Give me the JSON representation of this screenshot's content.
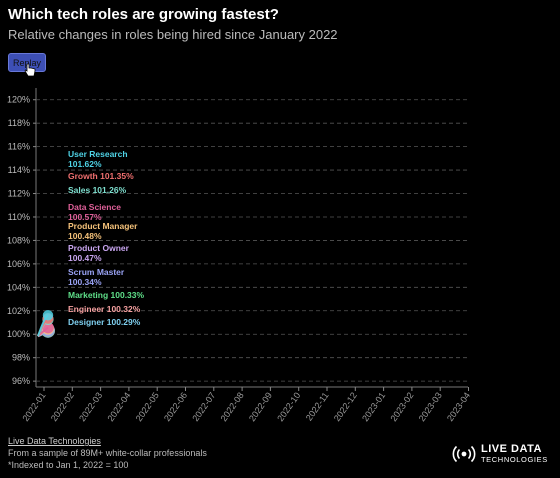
{
  "header": {
    "title": "Which tech roles are growing fastest?",
    "subtitle": "Relative changes in roles being hired since January 2022"
  },
  "controls": {
    "replay_label": "Replay"
  },
  "footer": {
    "source_link": "Live Data Technologies",
    "note1": "From a sample of 89M+ white-collar professionals",
    "note2": "*Indexed to Jan 1, 2022 = 100"
  },
  "logo": {
    "line1": "LIVE DATA",
    "line2": "TECHNOLOGIES"
  },
  "colors": {
    "background": "#000000",
    "grid": "#555555",
    "button": "#3d4fb5"
  },
  "chart_data": {
    "type": "line",
    "title": "Which tech roles are growing fastest?",
    "subtitle": "Relative changes in roles being hired since January 2022",
    "x_ticks": [
      "2022-01",
      "2022-02",
      "2022-03",
      "2022-04",
      "2022-05",
      "2022-06",
      "2022-07",
      "2022-08",
      "2022-09",
      "2022-10",
      "2022-11",
      "2022-12",
      "2023-01",
      "2023-02",
      "2023-03",
      "2023-04"
    ],
    "y_ticks": [
      "96%",
      "98%",
      "100%",
      "102%",
      "104%",
      "106%",
      "108%",
      "110%",
      "112%",
      "114%",
      "116%",
      "118%",
      "120%"
    ],
    "ylim": [
      95.5,
      121
    ],
    "grid": true,
    "series": [
      {
        "name": "User Research",
        "value": 101.62,
        "label_value": "101.62%",
        "color": "#4fd3e6"
      },
      {
        "name": "Growth",
        "value": 101.35,
        "label_value": "101.35%",
        "color": "#f07070"
      },
      {
        "name": "Sales",
        "value": 101.26,
        "label_value": "101.26%",
        "color": "#7fe0d0"
      },
      {
        "name": "Data Science",
        "value": 100.57,
        "label_value": "100.57%",
        "color": "#e0609a"
      },
      {
        "name": "Product Manager",
        "value": 100.48,
        "label_value": "100.48%",
        "color": "#f5c27a"
      },
      {
        "name": "Product Owner",
        "value": 100.47,
        "label_value": "100.47%",
        "color": "#c9a6f0"
      },
      {
        "name": "Scrum Master",
        "value": 100.34,
        "label_value": "100.34%",
        "color": "#9aa3f5"
      },
      {
        "name": "Marketing",
        "value": 100.33,
        "label_value": "100.33%",
        "color": "#5fe08a"
      },
      {
        "name": "Engineer",
        "value": 100.32,
        "label_value": "100.32%",
        "color": "#f5a0a0"
      },
      {
        "name": "Designer",
        "value": 100.29,
        "label_value": "100.29%",
        "color": "#7fd0f0"
      }
    ]
  }
}
